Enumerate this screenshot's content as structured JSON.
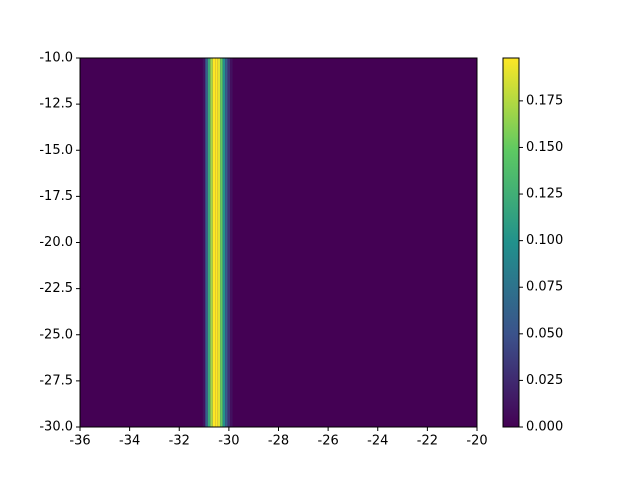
{
  "chart_data": {
    "type": "heatmap",
    "colormap": "viridis",
    "x": [
      -31.0,
      -30.9,
      -30.8,
      -30.7,
      -30.6,
      -30.5,
      -30.4,
      -30.3,
      -30.2,
      -30.1,
      -30.0,
      -29.9
    ],
    "values": [
      0.01,
      0.06,
      0.12,
      0.17,
      0.198,
      0.198,
      0.19,
      0.15,
      0.1,
      0.06,
      0.03,
      0.01
    ],
    "xlim": [
      -36,
      -20
    ],
    "xticks": [
      -36,
      -34,
      -32,
      -30,
      -28,
      -26,
      -24,
      -22,
      -20
    ],
    "ylim": [
      -30,
      -10
    ],
    "yticks": [
      {
        "value": -10,
        "label": "-10.0"
      },
      -12.5,
      {
        "value": -15,
        "label": "-15.0"
      },
      -17.5,
      {
        "value": -20,
        "label": "-20.0"
      },
      -22.5,
      {
        "value": -25,
        "label": "-25.0"
      },
      -27.5,
      {
        "value": -30,
        "label": "-30.0"
      }
    ],
    "clim": [
      0,
      0.198
    ],
    "cticks": [
      {
        "value": 0,
        "label": "0.000"
      },
      {
        "value": 0.025,
        "label": "0.025"
      },
      {
        "value": 0.05,
        "label": "0.050"
      },
      {
        "value": 0.075,
        "label": "0.075"
      },
      {
        "value": 0.1,
        "label": "0.100"
      },
      {
        "value": 0.125,
        "label": "0.125"
      },
      {
        "value": 0.15,
        "label": "0.150"
      },
      {
        "value": 0.175,
        "label": "0.175"
      }
    ]
  }
}
